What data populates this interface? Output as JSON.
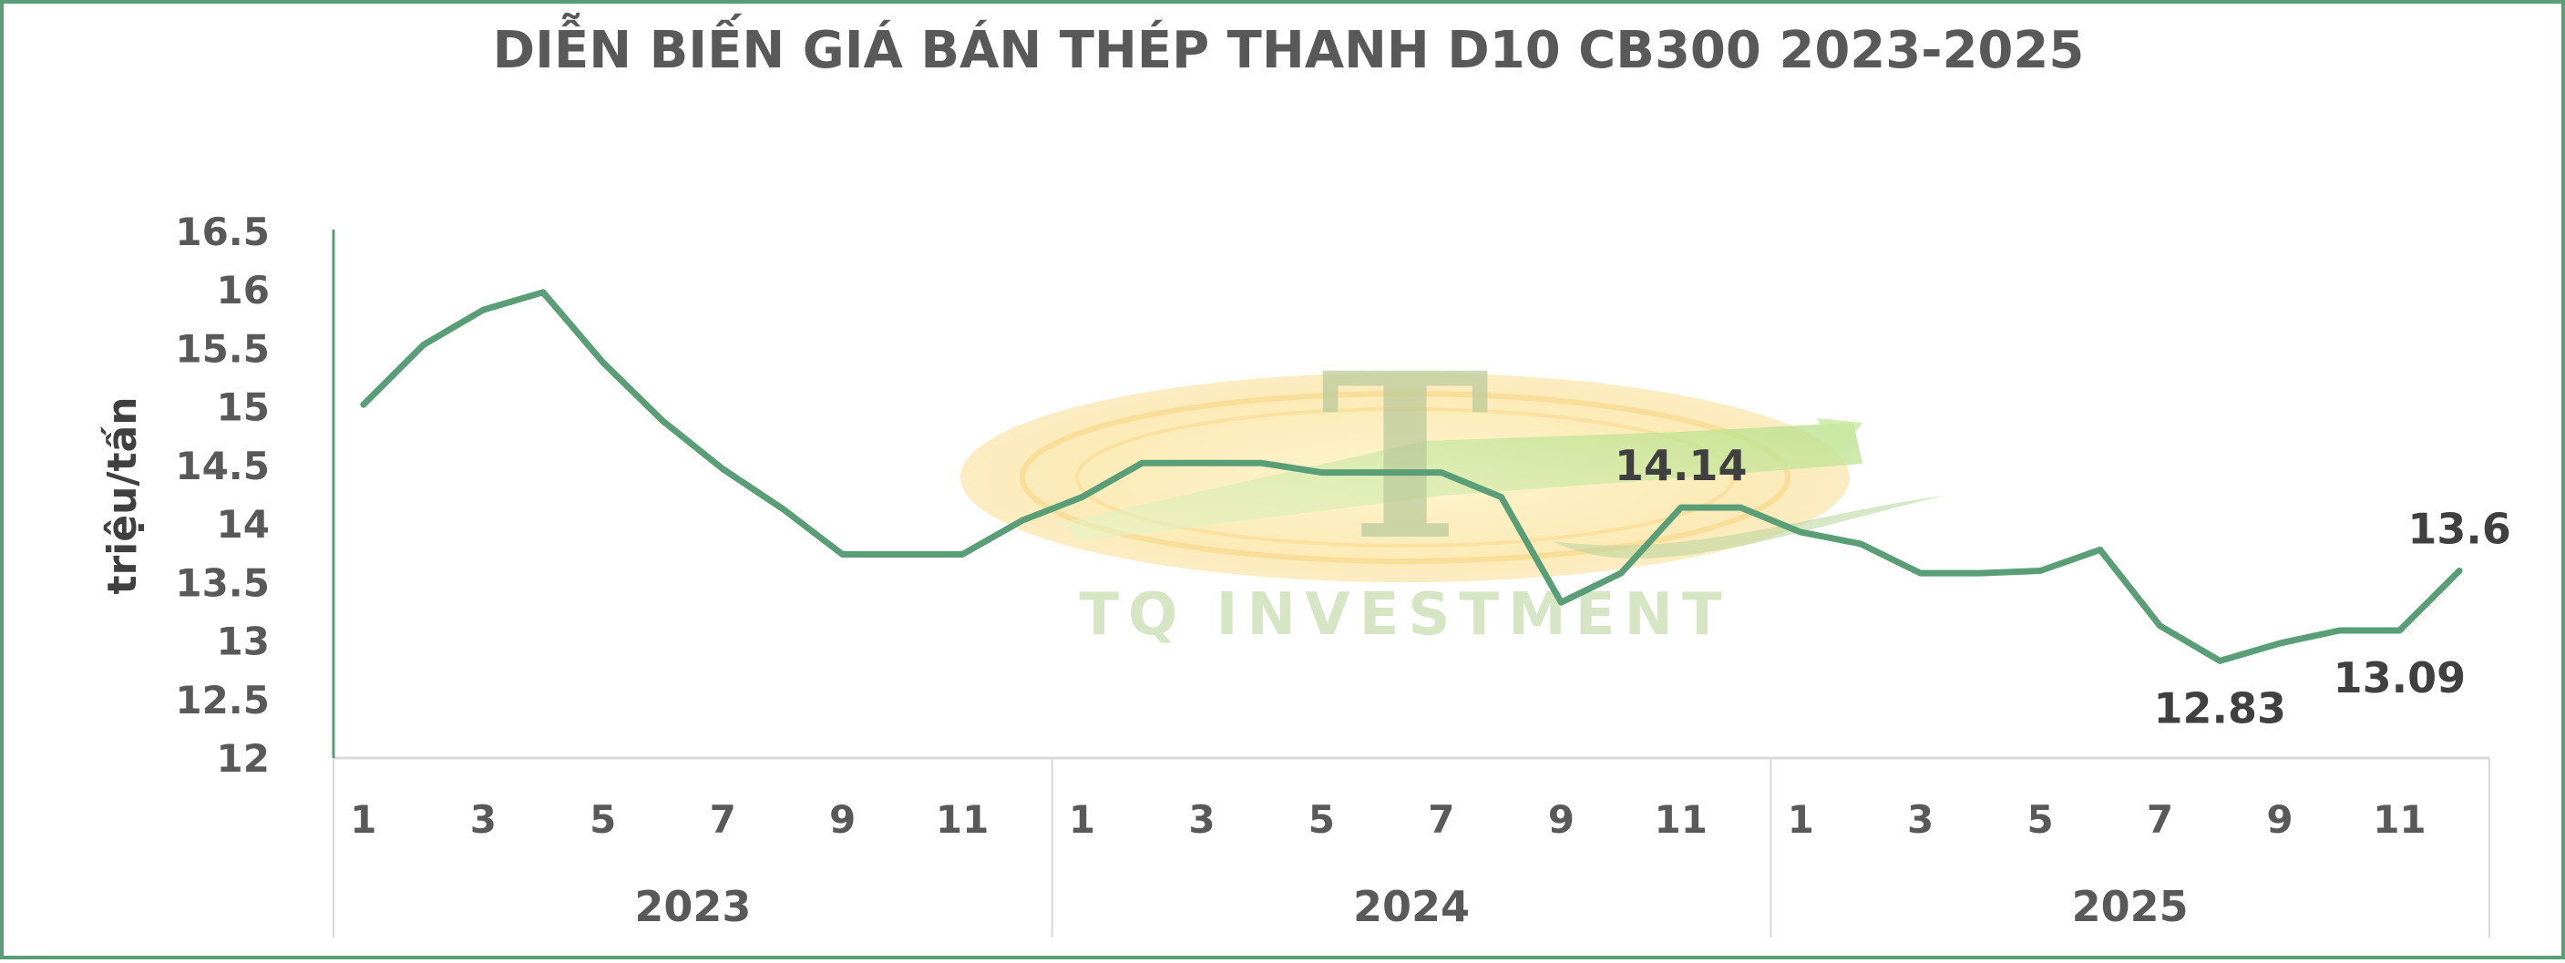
{
  "chart_data": {
    "type": "line",
    "title": "DIỄN BIẾN GIÁ BÁN THÉP THANH D10 CB300 2023-2025",
    "ylabel": "triệu/tấn",
    "xlabel": "",
    "ylim": [
      12,
      16.5
    ],
    "yticks": [
      "12",
      "12.5",
      "13",
      "13.5",
      "14",
      "14.5",
      "15",
      "15.5",
      "16",
      "16.5"
    ],
    "groups": [
      "2023",
      "2024",
      "2025"
    ],
    "month_tick_labels": [
      "1",
      "3",
      "5",
      "7",
      "9",
      "11"
    ],
    "series": [
      {
        "color": "#5a9e78",
        "values": [
          15.02,
          15.53,
          15.83,
          15.98,
          15.38,
          14.88,
          14.47,
          14.13,
          13.74,
          13.74,
          13.74,
          14.03,
          14.23,
          14.52,
          14.52,
          14.52,
          14.44,
          14.44,
          14.44,
          14.23,
          13.33,
          13.58,
          14.14,
          14.14,
          13.93,
          13.83,
          13.58,
          13.58,
          13.6,
          13.78,
          13.13,
          12.83,
          12.98,
          13.09,
          13.09,
          13.6
        ]
      }
    ],
    "data_labels": [
      {
        "index": 22,
        "text": "14.14",
        "pos": "above"
      },
      {
        "index": 31,
        "text": "12.83",
        "pos": "below"
      },
      {
        "index": 34,
        "text": "13.09",
        "pos": "below"
      },
      {
        "index": 35,
        "text": "13.6",
        "pos": "above"
      }
    ],
    "grid": false,
    "legend": "none"
  },
  "watermark": {
    "letter": "T",
    "text": "TQ INVESTMENT"
  },
  "colors": {
    "line": "#5a9e78",
    "border": "#5a9e78",
    "text": "#595959",
    "axis": "#d9d9d9"
  }
}
